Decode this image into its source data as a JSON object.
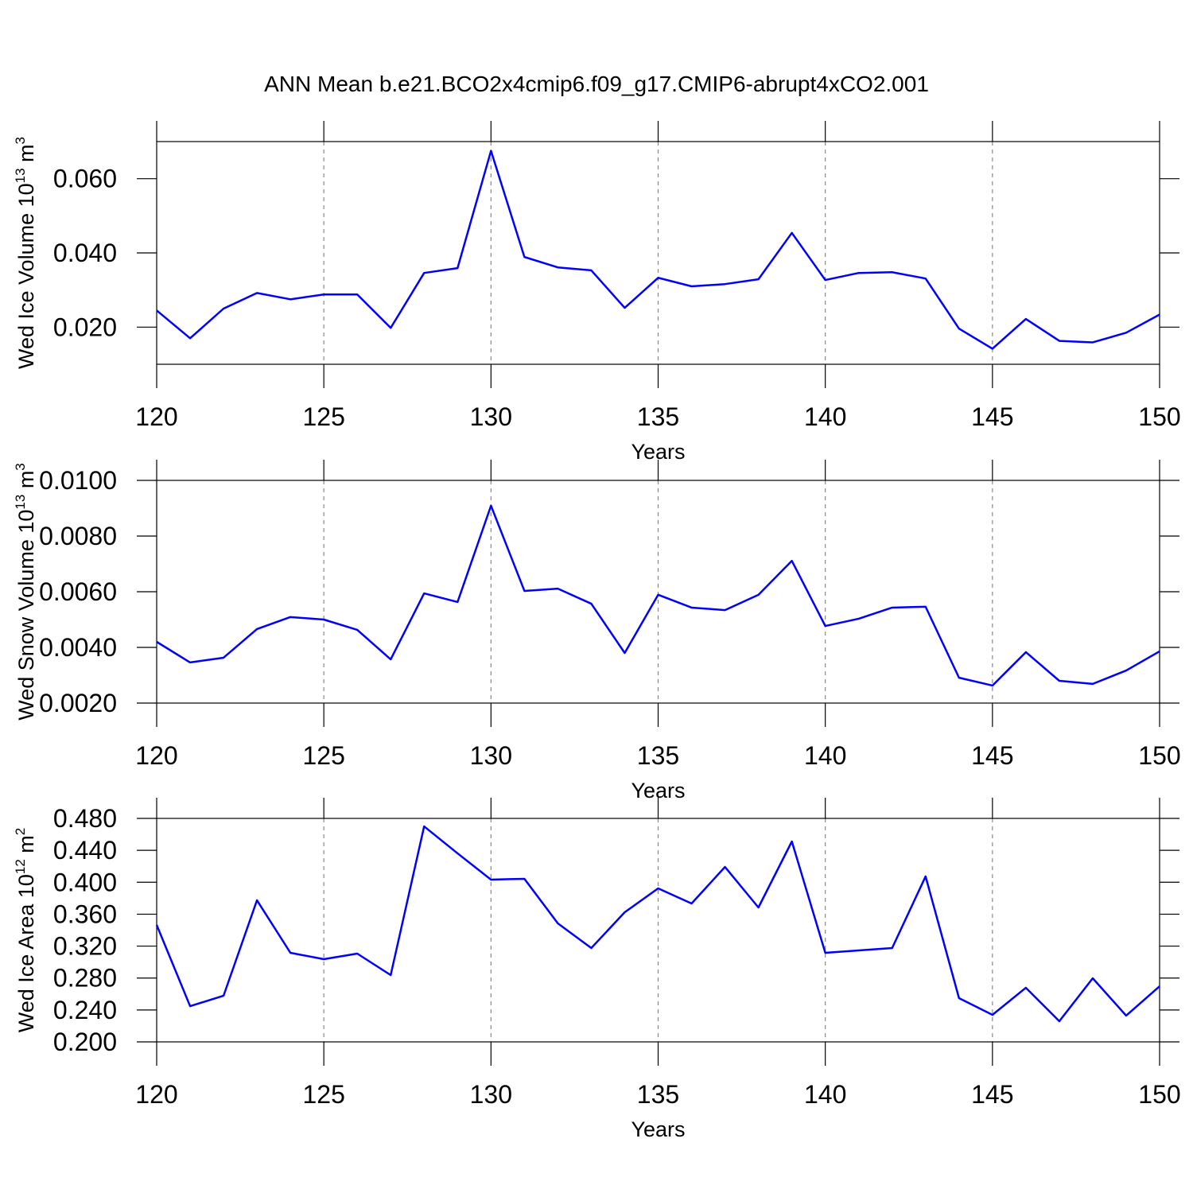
{
  "chart_data": [
    {
      "type": "line",
      "title": "ANN Mean b.e21.BCO2x4cmip6.f09_g17.CMIP6-abrupt4xCO2.001",
      "ylabel_parts": [
        "Wed Ice Volume 10",
        "13",
        " m",
        "3"
      ],
      "xlabel": "Years",
      "x": [
        120,
        121,
        122,
        123,
        124,
        125,
        126,
        127,
        128,
        129,
        130,
        131,
        132,
        133,
        134,
        135,
        136,
        137,
        138,
        139,
        140,
        141,
        142,
        143,
        144,
        145,
        146,
        147,
        148,
        149,
        150
      ],
      "values": [
        0.0245,
        0.017,
        0.025,
        0.0292,
        0.0275,
        0.0288,
        0.0288,
        0.0198,
        0.0346,
        0.0359,
        0.0675,
        0.0389,
        0.0361,
        0.0353,
        0.0252,
        0.0333,
        0.031,
        0.0316,
        0.0329,
        0.0454,
        0.0327,
        0.0346,
        0.0348,
        0.0331,
        0.0196,
        0.0142,
        0.0222,
        0.0163,
        0.0159,
        0.0185,
        0.0234
      ],
      "color": "#0000ff",
      "xlim": [
        120,
        150
      ],
      "xticks": [
        120,
        125,
        130,
        135,
        140,
        145,
        150
      ],
      "ylim": [
        0.01,
        0.07
      ],
      "yticks": [
        {
          "value": 0.02,
          "label": "0.020"
        },
        {
          "value": 0.04,
          "label": "0.040"
        },
        {
          "value": 0.06,
          "label": "0.060"
        }
      ],
      "grid": "x"
    },
    {
      "type": "line",
      "ylabel_parts": [
        "Wed Snow Volume 10",
        "13",
        " m",
        "3"
      ],
      "xlabel": "Years",
      "x": [
        120,
        121,
        122,
        123,
        124,
        125,
        126,
        127,
        128,
        129,
        130,
        131,
        132,
        133,
        134,
        135,
        136,
        137,
        138,
        139,
        140,
        141,
        142,
        143,
        144,
        145,
        146,
        147,
        148,
        149,
        150
      ],
      "values": [
        0.0042,
        0.00346,
        0.00363,
        0.00466,
        0.00509,
        0.005,
        0.00463,
        0.00357,
        0.00594,
        0.00563,
        0.00909,
        0.00603,
        0.00611,
        0.00557,
        0.0038,
        0.00589,
        0.00543,
        0.00534,
        0.00589,
        0.00711,
        0.00477,
        0.00503,
        0.00543,
        0.00546,
        0.00291,
        0.00263,
        0.00383,
        0.0028,
        0.00269,
        0.00317,
        0.00386
      ],
      "color": "#0000ff",
      "xlim": [
        120,
        150
      ],
      "xticks": [
        120,
        125,
        130,
        135,
        140,
        145,
        150
      ],
      "ylim": [
        0.002,
        0.01
      ],
      "yticks": [
        {
          "value": 0.002,
          "label": "0.0020"
        },
        {
          "value": 0.004,
          "label": "0.0040"
        },
        {
          "value": 0.006,
          "label": "0.0060"
        },
        {
          "value": 0.008,
          "label": "0.0080"
        },
        {
          "value": 0.01,
          "label": "0.0100"
        }
      ],
      "grid": "x"
    },
    {
      "type": "line",
      "ylabel_parts": [
        "Wed Ice Area 10",
        "12",
        " m",
        "2"
      ],
      "xlabel": "Years",
      "x": [
        120,
        121,
        122,
        123,
        124,
        125,
        126,
        127,
        128,
        129,
        130,
        131,
        132,
        133,
        134,
        135,
        136,
        137,
        138,
        139,
        140,
        141,
        142,
        143,
        144,
        145,
        146,
        147,
        148,
        149,
        150
      ],
      "values": [
        0.3465,
        0.2448,
        0.2578,
        0.3774,
        0.3116,
        0.3036,
        0.3106,
        0.2837,
        0.47,
        0.4362,
        0.4033,
        0.4043,
        0.3485,
        0.3176,
        0.3624,
        0.3923,
        0.3734,
        0.4192,
        0.3684,
        0.4511,
        0.3116,
        0.3146,
        0.3176,
        0.4073,
        0.2548,
        0.2339,
        0.2678,
        0.2259,
        0.2797,
        0.2329,
        0.2697
      ],
      "color": "#0000ff",
      "xlim": [
        120,
        150
      ],
      "xticks": [
        120,
        125,
        130,
        135,
        140,
        145,
        150
      ],
      "ylim": [
        0.2,
        0.48
      ],
      "yticks": [
        {
          "value": 0.2,
          "label": "0.200"
        },
        {
          "value": 0.24,
          "label": "0.240"
        },
        {
          "value": 0.28,
          "label": "0.280"
        },
        {
          "value": 0.32,
          "label": "0.320"
        },
        {
          "value": 0.36,
          "label": "0.360"
        },
        {
          "value": 0.4,
          "label": "0.400"
        },
        {
          "value": 0.44,
          "label": "0.440"
        },
        {
          "value": 0.48,
          "label": "0.480"
        }
      ],
      "grid": "x"
    }
  ]
}
